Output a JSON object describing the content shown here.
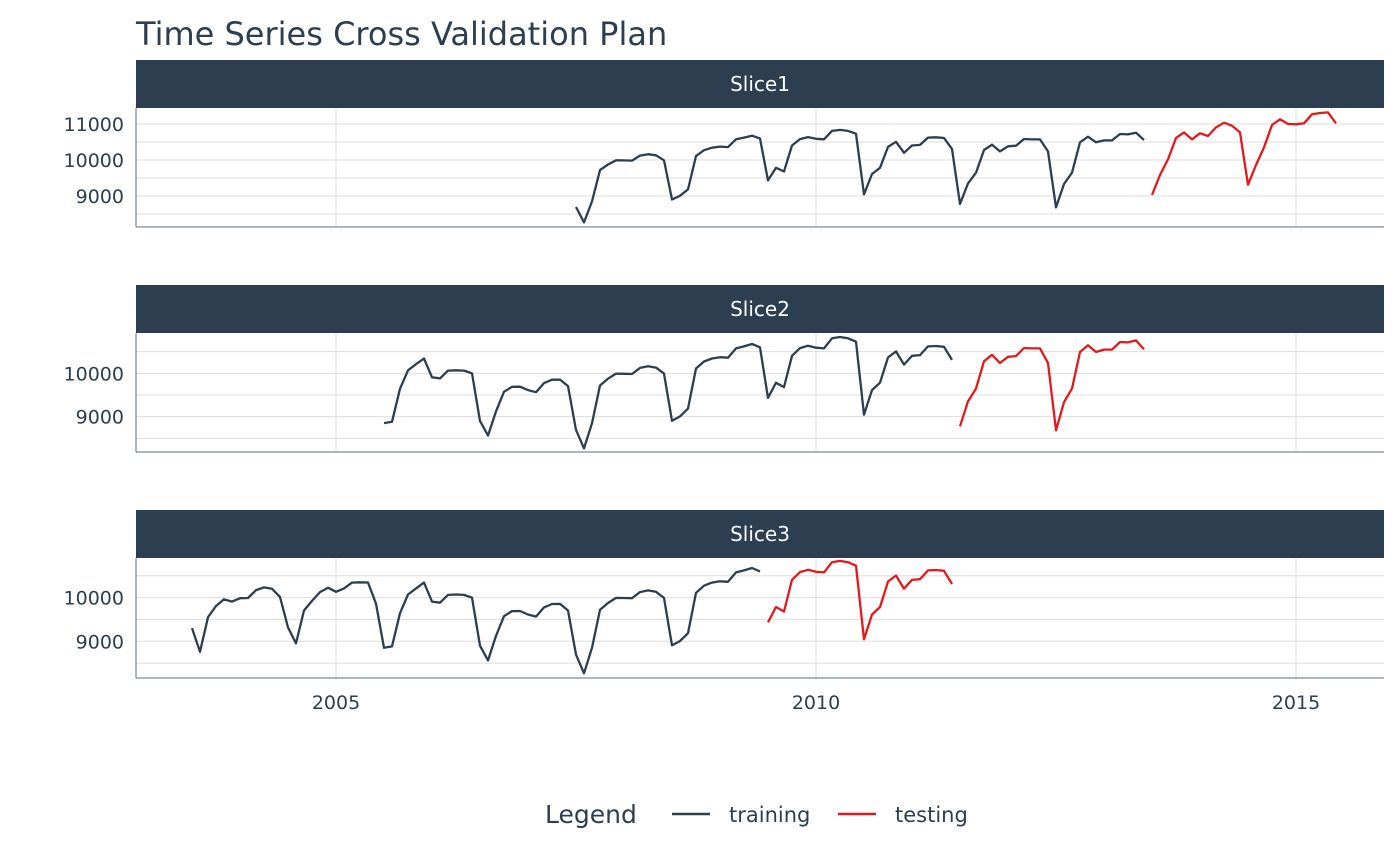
{
  "chart_data": {
    "type": "line",
    "title": "Time Series Cross Validation Plan",
    "xlabel": "",
    "ylabel": "",
    "grid": true,
    "legend": {
      "title": "Legend",
      "placement": "bottom",
      "entries": [
        {
          "name": "training",
          "color": "#2c3e50"
        },
        {
          "name": "testing",
          "color": "#e31a1c"
        }
      ]
    },
    "strip_color": "#2c3e50",
    "x_ticks": [
      "2005",
      "2010",
      "2015"
    ],
    "xlim": [
      "2002-12",
      "2015-12"
    ],
    "x": [
      "2003-07",
      "2003-08",
      "2003-09",
      "2003-10",
      "2003-11",
      "2003-12",
      "2004-01",
      "2004-02",
      "2004-03",
      "2004-04",
      "2004-05",
      "2004-06",
      "2004-07",
      "2004-08",
      "2004-09",
      "2004-10",
      "2004-11",
      "2004-12",
      "2005-01",
      "2005-02",
      "2005-03",
      "2005-04",
      "2005-05",
      "2005-06",
      "2005-07",
      "2005-08",
      "2005-09",
      "2005-10",
      "2005-11",
      "2005-12",
      "2006-01",
      "2006-02",
      "2006-03",
      "2006-04",
      "2006-05",
      "2006-06",
      "2006-07",
      "2006-08",
      "2006-09",
      "2006-10",
      "2006-11",
      "2006-12",
      "2007-01",
      "2007-02",
      "2007-03",
      "2007-04",
      "2007-05",
      "2007-06",
      "2007-07",
      "2007-08",
      "2007-09",
      "2007-10",
      "2007-11",
      "2007-12",
      "2008-01",
      "2008-02",
      "2008-03",
      "2008-04",
      "2008-05",
      "2008-06",
      "2008-07",
      "2008-08",
      "2008-09",
      "2008-10",
      "2008-11",
      "2008-12",
      "2009-01",
      "2009-02",
      "2009-03",
      "2009-04",
      "2009-05",
      "2009-06",
      "2009-07",
      "2009-08",
      "2009-09",
      "2009-10",
      "2009-11",
      "2009-12",
      "2010-01",
      "2010-02",
      "2010-03",
      "2010-04",
      "2010-05",
      "2010-06",
      "2010-07",
      "2010-08",
      "2010-09",
      "2010-10",
      "2010-11",
      "2010-12",
      "2011-01",
      "2011-02",
      "2011-03",
      "2011-04",
      "2011-05",
      "2011-06",
      "2011-07",
      "2011-08",
      "2011-09",
      "2011-10",
      "2011-11",
      "2011-12",
      "2012-01",
      "2012-02",
      "2012-03",
      "2012-04",
      "2012-05",
      "2012-06",
      "2012-07",
      "2012-08",
      "2012-09",
      "2012-10",
      "2012-11",
      "2012-12",
      "2013-01",
      "2013-02",
      "2013-03",
      "2013-04",
      "2013-05",
      "2013-06",
      "2013-07",
      "2013-08",
      "2013-09",
      "2013-10",
      "2013-11",
      "2013-12",
      "2014-01",
      "2014-02",
      "2014-03",
      "2014-04",
      "2014-05",
      "2014-06",
      "2014-07",
      "2014-08",
      "2014-09",
      "2014-10",
      "2014-11",
      "2014-12",
      "2015-01",
      "2015-02",
      "2015-03",
      "2015-04",
      "2015-05",
      "2015-06"
    ],
    "values": [
      9302,
      8760,
      9550,
      9807,
      9960,
      9907,
      9985,
      9990,
      10170,
      10233,
      10200,
      10015,
      9317,
      8952,
      9705,
      9923,
      10124,
      10225,
      10132,
      10210,
      10342,
      10350,
      10345,
      9860,
      8851,
      8882,
      9643,
      10070,
      10210,
      10342,
      9907,
      9883,
      10062,
      10070,
      10062,
      10000,
      8900,
      8563,
      9122,
      9573,
      9690,
      9692,
      9612,
      9565,
      9775,
      9853,
      9855,
      9705,
      8695,
      8268,
      8850,
      9720,
      9875,
      9993,
      9990,
      9985,
      10124,
      10163,
      10132,
      9993,
      8905,
      9006,
      9185,
      10110,
      10272,
      10342,
      10372,
      10360,
      10575,
      10622,
      10676,
      10599,
      9434,
      9783,
      9681,
      10403,
      10582,
      10636,
      10590,
      10575,
      10808,
      10838,
      10808,
      10730,
      9045,
      9612,
      9783,
      10365,
      10505,
      10202,
      10403,
      10420,
      10622,
      10630,
      10612,
      10310,
      8778,
      9352,
      9648,
      10278,
      10426,
      10241,
      10380,
      10398,
      10583,
      10574,
      10574,
      10241,
      8685,
      9333,
      9648,
      10491,
      10648,
      10491,
      10546,
      10546,
      10722,
      10713,
      10759,
      10555,
      9028,
      9583,
      10018,
      10611,
      10768,
      10574,
      10741,
      10667,
      10907,
      11037,
      10954,
      10768,
      9315,
      9861,
      10352,
      10972,
      11130,
      11000,
      10991,
      11019,
      11269,
      11306,
      11324,
      11019
    ],
    "panels": [
      {
        "label": "Slice1",
        "training": [
          "2007-07",
          "2013-06"
        ],
        "testing": [
          "2013-07",
          "2015-06"
        ],
        "y_ticks": [
          "9000",
          "10000",
          "11000"
        ],
        "ylim": [
          8140,
          11445
        ],
        "minor_step": 500
      },
      {
        "label": "Slice2",
        "training": [
          "2005-07",
          "2011-06"
        ],
        "testing": [
          "2011-07",
          "2013-06"
        ],
        "y_ticks": [
          "9000",
          "10000"
        ],
        "ylim": [
          8185,
          10930
        ],
        "minor_step": 500
      },
      {
        "label": "Slice3",
        "training": [
          "2003-07",
          "2009-06"
        ],
        "testing": [
          "2009-07",
          "2011-06"
        ],
        "y_ticks": [
          "9000",
          "10000"
        ],
        "ylim": [
          8160,
          10905
        ],
        "minor_step": 500
      }
    ]
  }
}
